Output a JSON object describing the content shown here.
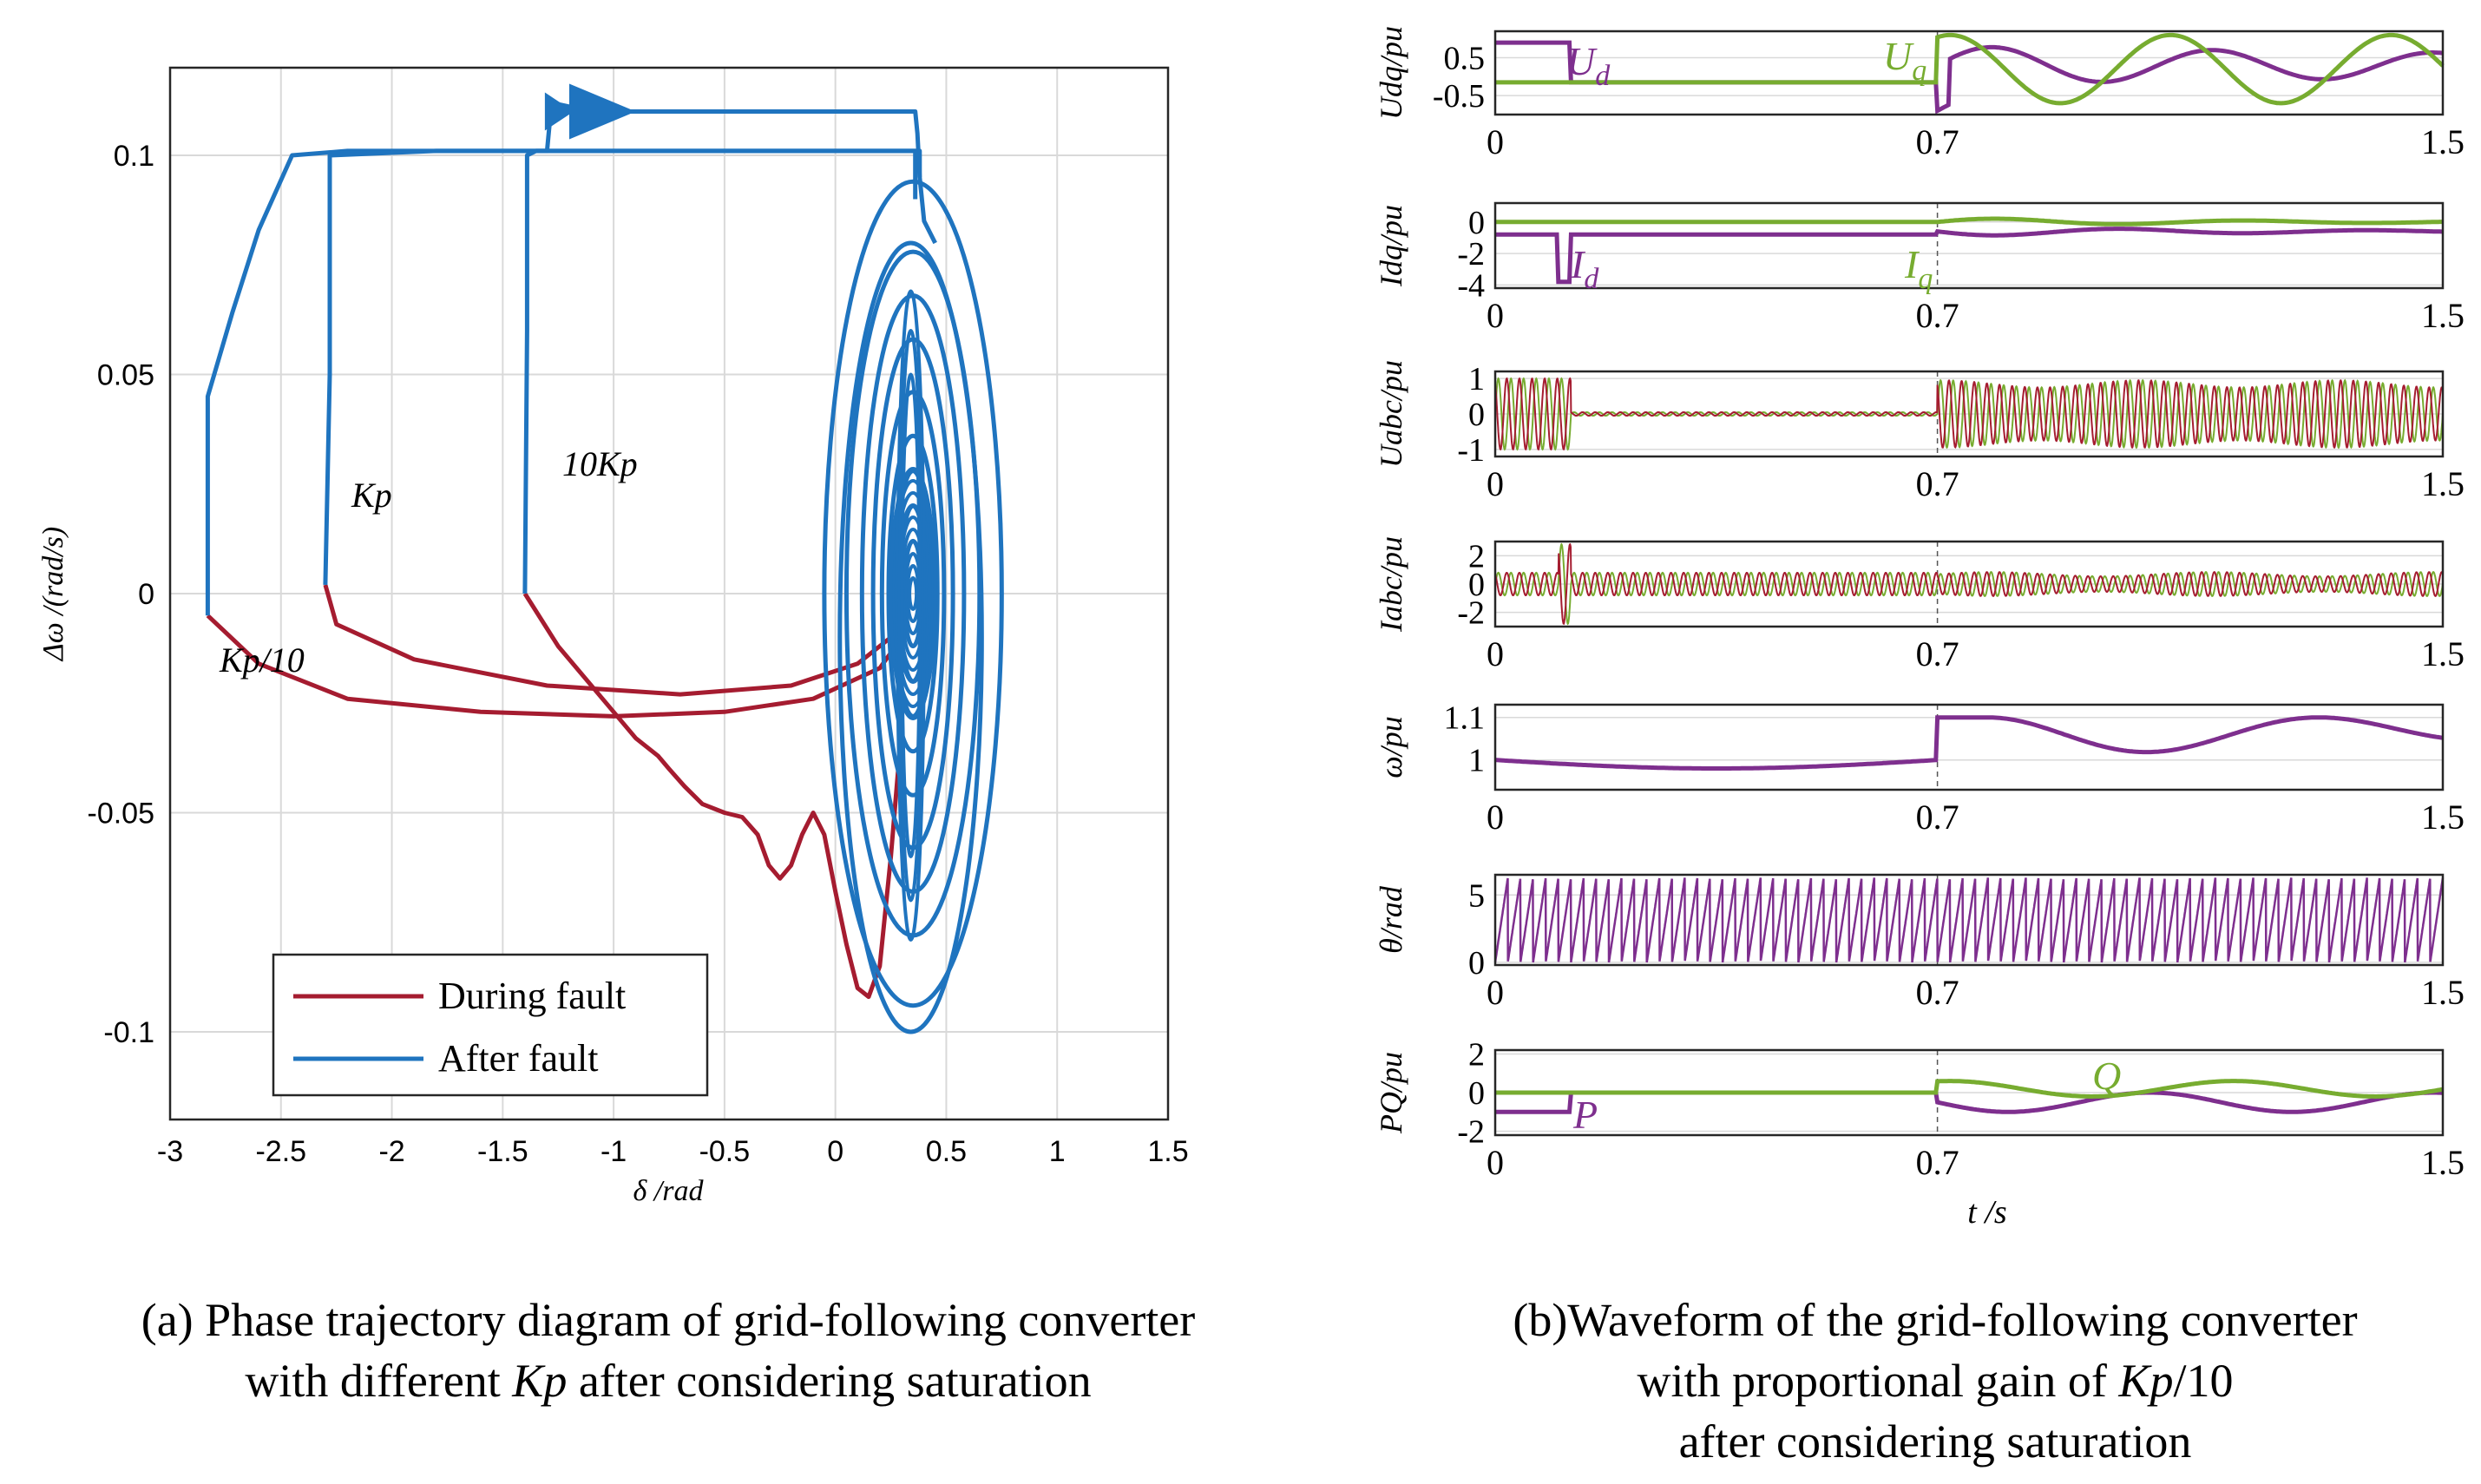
{
  "colors": {
    "red": "#A51C30",
    "blue": "#1F74BF",
    "purple": "#7E2F8E",
    "green": "#77AC30",
    "grid": "#d9d9d9"
  },
  "captions": {
    "a_line1": "(a) Phase trajectory diagram of grid-following converter",
    "a_line2_pre": "with different ",
    "a_line2_kp": "Kp",
    "a_line2_post": " after considering saturation",
    "b_line1": "(b)Waveform of the grid-following converter",
    "b_line2_pre": "with proportional gain of ",
    "b_line2_kp": "Kp",
    "b_line2_post": "/10",
    "b_line3": "after considering saturation"
  },
  "chart_data": [
    {
      "id": "phase",
      "type": "line",
      "title": "",
      "xlabel": "δ /rad",
      "ylabel": "Δω /(rad/s)",
      "xlim": [
        -3,
        1.5
      ],
      "ylim": [
        -0.12,
        0.12
      ],
      "xticks": [
        "-3",
        "-2.5",
        "-2",
        "-1.5",
        "-1",
        "-0.5",
        "0",
        "0.5",
        "1",
        "1.5"
      ],
      "yticks": [
        "0.1",
        "0.05",
        "0",
        "-0.05",
        "-0.1"
      ],
      "grid": true,
      "legend": {
        "position": "bottom-left",
        "entries": [
          "During fault",
          "After fault"
        ]
      },
      "annotations": {
        "kp": "Kp",
        "tenkp": "10Kp",
        "kp10": "Kp/10"
      },
      "series": [
        {
          "name": "During fault (Kp/10)",
          "points": [
            [
              -2.83,
              -0.005
            ],
            [
              -2.6,
              -0.016
            ],
            [
              -2.2,
              -0.024
            ],
            [
              -1.6,
              -0.027
            ],
            [
              -1.0,
              -0.028
            ],
            [
              -0.5,
              -0.027
            ],
            [
              -0.1,
              -0.024
            ],
            [
              0.2,
              -0.017
            ],
            [
              0.3,
              -0.01
            ]
          ]
        },
        {
          "name": "During fault (Kp)",
          "points": [
            [
              -2.3,
              0.002
            ],
            [
              -2.25,
              -0.007
            ],
            [
              -1.9,
              -0.015
            ],
            [
              -1.3,
              -0.021
            ],
            [
              -0.7,
              -0.023
            ],
            [
              -0.2,
              -0.021
            ],
            [
              0.1,
              -0.016
            ],
            [
              0.3,
              -0.008
            ]
          ]
        },
        {
          "name": "During fault (10Kp)",
          "points": [
            [
              -1.4,
              0.0
            ],
            [
              -1.25,
              -0.012
            ],
            [
              -1.05,
              -0.024
            ],
            [
              -0.9,
              -0.033
            ],
            [
              -0.8,
              -0.037
            ],
            [
              -0.75,
              -0.04
            ],
            [
              -0.68,
              -0.044
            ],
            [
              -0.6,
              -0.048
            ],
            [
              -0.5,
              -0.05
            ],
            [
              -0.42,
              -0.051
            ],
            [
              -0.35,
              -0.055
            ],
            [
              -0.3,
              -0.062
            ],
            [
              -0.25,
              -0.065
            ],
            [
              -0.2,
              -0.062
            ],
            [
              -0.15,
              -0.055
            ],
            [
              -0.1,
              -0.05
            ],
            [
              -0.05,
              -0.055
            ],
            [
              0.0,
              -0.068
            ],
            [
              0.05,
              -0.08
            ],
            [
              0.1,
              -0.09
            ],
            [
              0.15,
              -0.092
            ],
            [
              0.2,
              -0.085
            ],
            [
              0.25,
              -0.06
            ],
            [
              0.3,
              -0.03
            ]
          ]
        },
        {
          "name": "After fault (Kp/10)",
          "points": [
            [
              -2.83,
              -0.005
            ],
            [
              -2.83,
              0.045
            ],
            [
              -2.72,
              0.064
            ],
            [
              -2.6,
              0.083
            ],
            [
              -2.45,
              0.1
            ],
            [
              -2.2,
              0.101
            ],
            [
              -1.5,
              0.101
            ],
            [
              -0.5,
              0.101
            ],
            [
              0.38,
              0.101
            ],
            [
              0.38,
              0.095
            ],
            [
              0.4,
              0.085
            ],
            [
              0.45,
              0.08
            ]
          ]
        },
        {
          "name": "After fault (Kp)",
          "points": [
            [
              -2.3,
              0.002
            ],
            [
              -2.28,
              0.05
            ],
            [
              -2.28,
              0.1
            ],
            [
              -1.8,
              0.101
            ],
            [
              -0.8,
              0.101
            ],
            [
              0.36,
              0.101
            ],
            [
              0.36,
              0.09
            ]
          ]
        },
        {
          "name": "After fault (10Kp)",
          "points": [
            [
              -1.4,
              0.0
            ],
            [
              -1.39,
              0.06
            ],
            [
              -1.39,
              0.1
            ],
            [
              -1.35,
              0.101
            ],
            [
              -1.3,
              0.101
            ],
            [
              -1.28,
              0.112
            ],
            [
              -1.1,
              0.11
            ],
            [
              -0.8,
              0.11
            ],
            [
              -0.3,
              0.11
            ],
            [
              0.36,
              0.11
            ],
            [
              0.37,
              0.105
            ],
            [
              0.38,
              0.095
            ]
          ]
        },
        {
          "name": "After fault (spiral)",
          "spiral_center": [
            0.35,
            0.0
          ],
          "spiral_turns": [
            [
              0.4,
              0.094
            ],
            [
              0.3,
              0.078
            ],
            [
              0.23,
              0.068
            ],
            [
              0.18,
              0.058
            ],
            [
              0.14,
              0.046
            ],
            [
              0.11,
              0.036
            ],
            [
              0.08,
              0.028
            ],
            [
              0.06,
              0.02
            ],
            [
              0.04,
              0.012
            ]
          ]
        }
      ]
    },
    {
      "id": "waveforms",
      "type": "line",
      "xlabel": "t /s",
      "xlim": [
        0,
        1.5
      ],
      "xticks": [
        "0",
        "0.7",
        "1.5"
      ],
      "panels": [
        {
          "ylabel": "Udq/pu",
          "yticks": [
            "0.5",
            "-0.5"
          ],
          "ylim": [
            -1.0,
            1.2
          ],
          "series": [
            {
              "name": "Ud",
              "color": "purple"
            },
            {
              "name": "Uq",
              "color": "green"
            }
          ]
        },
        {
          "ylabel": "Idq/pu",
          "yticks": [
            "0",
            "-2",
            "-4"
          ],
          "ylim": [
            -4.2,
            1.2
          ],
          "series": [
            {
              "name": "Id",
              "color": "purple"
            },
            {
              "name": "Iq",
              "color": "green"
            }
          ]
        },
        {
          "ylabel": "Uabc/pu",
          "yticks": [
            "1",
            "0",
            "-1"
          ],
          "ylim": [
            -1.2,
            1.2
          ],
          "series": [
            {
              "name": "Ua",
              "color": "green"
            },
            {
              "name": "Ub",
              "color": "red"
            }
          ]
        },
        {
          "ylabel": "Iabc/pu",
          "yticks": [
            "2",
            "0",
            "-2"
          ],
          "ylim": [
            -3,
            3
          ],
          "series": [
            {
              "name": "Ia",
              "color": "green"
            },
            {
              "name": "Ib",
              "color": "red"
            }
          ]
        },
        {
          "ylabel": "ω/pu",
          "yticks": [
            "1.1",
            "1"
          ],
          "ylim": [
            0.93,
            1.13
          ],
          "series": [
            {
              "name": "ω",
              "color": "purple"
            }
          ]
        },
        {
          "ylabel": "θ/rad",
          "yticks": [
            "5",
            "0"
          ],
          "ylim": [
            -0.2,
            6.5
          ],
          "series": [
            {
              "name": "θ",
              "color": "purple"
            }
          ]
        },
        {
          "ylabel": "PQ/pu",
          "yticks": [
            "2",
            "0",
            "-2"
          ],
          "ylim": [
            -2.2,
            2.2
          ],
          "series": [
            {
              "name": "P",
              "color": "purple"
            },
            {
              "name": "Q",
              "color": "green"
            }
          ]
        }
      ],
      "labels": {
        "Ud": "U",
        "Ud_sub": "d",
        "Uq": "U",
        "Uq_sub": "q",
        "Id": "I",
        "Id_sub": "d",
        "Iq": "I",
        "Iq_sub": "q",
        "P": "P",
        "Q": "Q"
      }
    }
  ]
}
